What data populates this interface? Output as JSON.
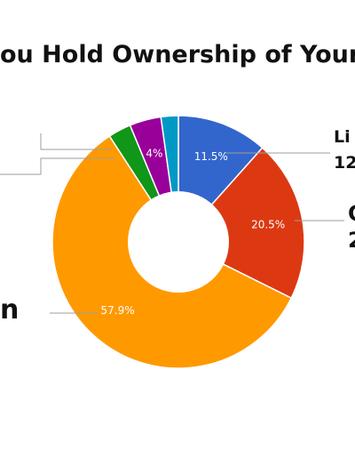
{
  "chart_data": {
    "type": "pie",
    "donut": true,
    "title": "ou Hold Ownership of Your",
    "series": [
      {
        "values": [
          11.5,
          20.5,
          57.9,
          2.9,
          4.0,
          2.2
        ],
        "colors": [
          "#3366cc",
          "#dc3912",
          "#ff9900",
          "#109618",
          "#990099",
          "#0099c6"
        ],
        "data_labels": [
          "11.5%",
          "20.5%",
          "57.9%",
          "",
          "4%",
          ""
        ]
      }
    ],
    "outer_labels": [
      {
        "line1": "Li",
        "line2": "12"
      },
      {
        "line1": "C",
        "line2": "2"
      },
      {
        "line1": "n",
        "line2": ""
      }
    ]
  }
}
